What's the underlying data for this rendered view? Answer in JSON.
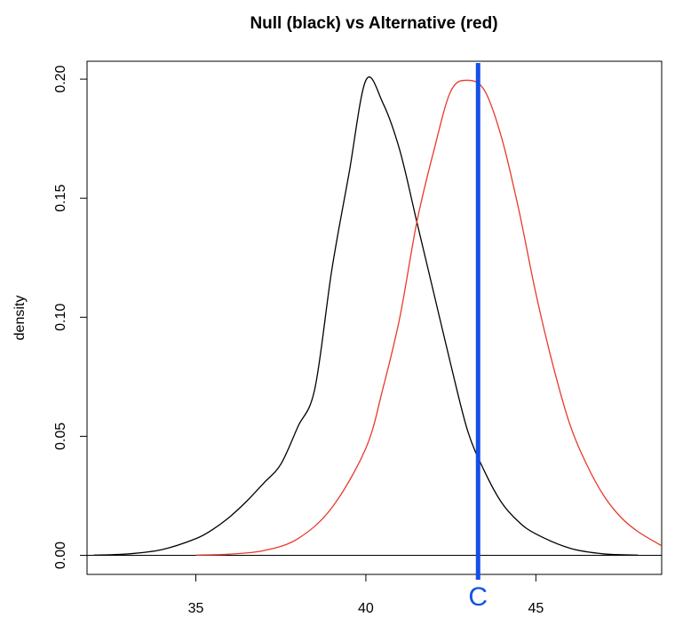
{
  "chart_data": {
    "type": "line",
    "title": "Null (black) vs Alternative (red)",
    "xlabel": "",
    "ylabel": "density",
    "xlim": [
      31.8,
      48.7
    ],
    "ylim": [
      -0.008,
      0.2075
    ],
    "x_ticks": [
      35,
      40,
      45
    ],
    "x_tick_labels": [
      "35",
      "40",
      "45"
    ],
    "y_ticks": [
      0.0,
      0.05,
      0.1,
      0.15,
      0.2
    ],
    "y_tick_labels": [
      "0.00",
      "0.05",
      "0.10",
      "0.15",
      "0.20"
    ],
    "grid": false,
    "series": [
      {
        "name": "Null",
        "color": "#000000",
        "x": [
          32,
          33,
          34,
          35,
          35.5,
          36,
          36.5,
          37,
          37.5,
          38,
          38.5,
          39,
          39.5,
          40,
          40.5,
          41,
          41.5,
          42,
          42.5,
          43,
          43.5,
          44,
          44.5,
          45,
          46,
          47,
          48
        ],
        "y": [
          0.0001,
          0.0006,
          0.0024,
          0.007,
          0.0109,
          0.0162,
          0.0228,
          0.0304,
          0.0383,
          0.054,
          0.07,
          0.12,
          0.16,
          0.1995,
          0.19,
          0.17,
          0.14,
          0.11,
          0.08,
          0.052,
          0.035,
          0.022,
          0.014,
          0.009,
          0.003,
          0.0006,
          0.0001
        ]
      },
      {
        "name": "Alternative",
        "color": "#e8392d",
        "x": [
          35,
          36,
          37,
          38,
          39,
          40,
          40.5,
          41,
          41.5,
          42,
          42.5,
          43,
          43.5,
          44,
          44.5,
          45,
          45.5,
          46,
          46.5,
          47,
          47.5,
          48,
          48.7
        ],
        "y": [
          0.0001,
          0.0005,
          0.002,
          0.007,
          0.02,
          0.045,
          0.07,
          0.1,
          0.14,
          0.17,
          0.195,
          0.1995,
          0.195,
          0.175,
          0.145,
          0.11,
          0.08,
          0.055,
          0.038,
          0.025,
          0.016,
          0.01,
          0.004
        ]
      }
    ],
    "baseline_y": 0,
    "vline": {
      "x": 43.3,
      "color": "#1250e6",
      "label": "C"
    }
  }
}
